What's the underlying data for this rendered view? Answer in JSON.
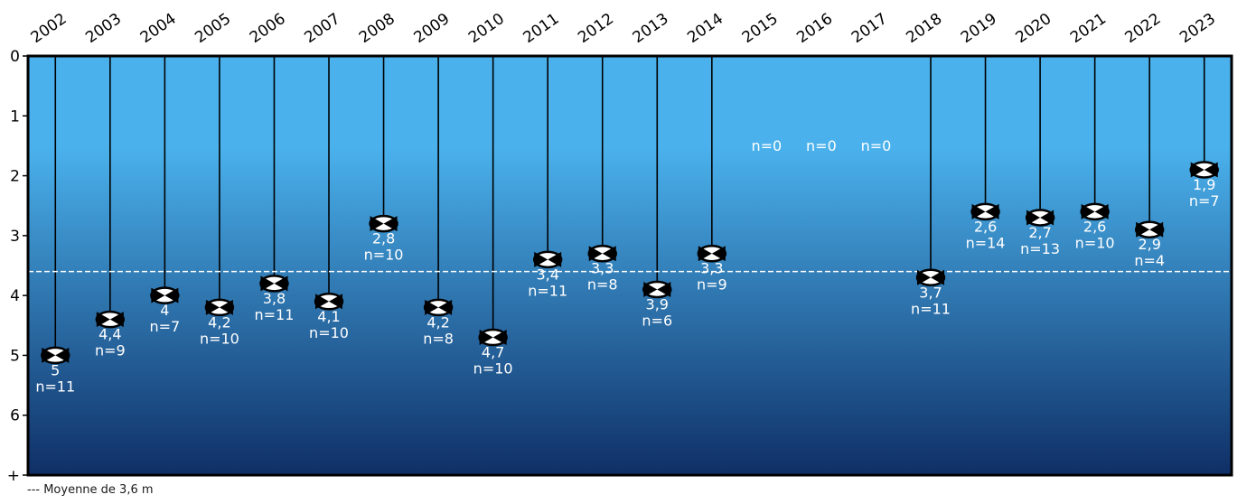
{
  "chart_data": {
    "type": "scatter",
    "categories": [
      "2002",
      "2003",
      "2004",
      "2005",
      "2006",
      "2007",
      "2008",
      "2009",
      "2010",
      "2011",
      "2012",
      "2013",
      "2014",
      "2015",
      "2016",
      "2017",
      "2018",
      "2019",
      "2020",
      "2021",
      "2022",
      "2023"
    ],
    "values": [
      5,
      4.4,
      4,
      4.2,
      3.8,
      4.1,
      2.8,
      4.2,
      4.7,
      3.4,
      3.3,
      3.9,
      3.3,
      null,
      null,
      null,
      3.7,
      2.6,
      2.7,
      2.6,
      2.9,
      1.9
    ],
    "value_labels": [
      "5",
      "4,4",
      "4",
      "4,2",
      "3,8",
      "4,1",
      "2,8",
      "4,2",
      "4,7",
      "3,4",
      "3,3",
      "3,9",
      "3,3",
      "",
      "",
      "",
      "3,7",
      "2,6",
      "2,7",
      "2,6",
      "2,9",
      "1,9"
    ],
    "counts": [
      "n=11",
      "n=9",
      "n=7",
      "n=10",
      "n=11",
      "n=10",
      "n=10",
      "n=8",
      "n=10",
      "n=11",
      "n=8",
      "n=6",
      "n=9",
      "n=0",
      "n=0",
      "n=0",
      "n=11",
      "n=14",
      "n=13",
      "n=10",
      "n=4",
      "n=7"
    ],
    "y_tick_labels": [
      "0",
      "1",
      "2",
      "3",
      "4",
      "5",
      "6",
      "+"
    ],
    "y_ticks": [
      0,
      1,
      2,
      3,
      4,
      5,
      6,
      7
    ],
    "ylim": [
      0,
      7
    ],
    "y_inverted": true,
    "mean": 3.6,
    "mean_caption": "--- Moyenne de 3,6 m",
    "title": "",
    "xlabel": "",
    "ylabel": "",
    "grid": false,
    "colors": {
      "water_top": "#4ab1ec",
      "water_bottom": "#0f2f66",
      "frame": "#000000",
      "line": "#000000",
      "mean_line": "#ffffff",
      "label_text": "#ffffff",
      "axis_text": "#000000"
    },
    "icon": "secchi-disk-icon"
  }
}
